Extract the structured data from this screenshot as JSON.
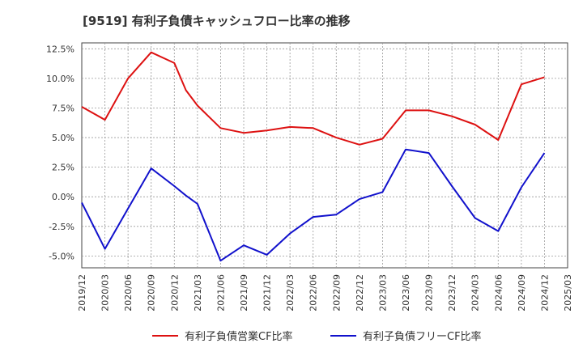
{
  "chart_data": {
    "type": "line",
    "title": "[9519]  有利子負債キャッシュフロー比率の推移",
    "xlabel": "",
    "ylabel": "",
    "ylim": [
      -6.0,
      13.0
    ],
    "yticks": [
      "12.5%",
      "10.0%",
      "7.5%",
      "5.0%",
      "2.5%",
      "0.0%",
      "-2.5%",
      "-5.0%"
    ],
    "ytick_values": [
      12.5,
      10.0,
      7.5,
      5.0,
      2.5,
      0.0,
      -2.5,
      -5.0
    ],
    "xticks": [
      "2019/12",
      "2020/03",
      "2020/06",
      "2020/09",
      "2020/12",
      "2021/03",
      "2021/06",
      "2021/09",
      "2021/12",
      "2022/03",
      "2022/06",
      "2022/09",
      "2022/12",
      "2023/03",
      "2023/06",
      "2023/09",
      "2023/12",
      "2024/03",
      "2024/06",
      "2024/09",
      "2024/12",
      "2025/03"
    ],
    "grid": true,
    "legend_position": "bottom",
    "series": [
      {
        "name": "有利子負債営業CF比率",
        "color": "#dd1111",
        "points": [
          [
            0,
            7.6
          ],
          [
            1,
            6.5
          ],
          [
            2,
            10.0
          ],
          [
            3,
            12.2
          ],
          [
            4,
            11.3
          ],
          [
            4.5,
            9.0
          ],
          [
            5,
            7.7
          ],
          [
            6,
            5.8
          ],
          [
            7,
            5.4
          ],
          [
            8,
            5.6
          ],
          [
            9,
            5.9
          ],
          [
            10,
            5.8
          ],
          [
            11,
            5.0
          ],
          [
            12,
            4.4
          ],
          [
            13,
            4.9
          ],
          [
            14,
            7.3
          ],
          [
            15,
            7.3
          ],
          [
            16,
            6.8
          ],
          [
            17,
            6.1
          ],
          [
            18,
            4.8
          ],
          [
            19,
            9.5
          ],
          [
            20,
            10.1
          ]
        ]
      },
      {
        "name": "有利子負債フリーCF比率",
        "color": "#1111cc",
        "points": [
          [
            0,
            -0.5
          ],
          [
            1,
            -4.4
          ],
          [
            2,
            -1.0
          ],
          [
            3,
            2.4
          ],
          [
            4,
            0.9
          ],
          [
            4.5,
            0.1
          ],
          [
            5,
            -0.6
          ],
          [
            6,
            -5.4
          ],
          [
            7,
            -4.1
          ],
          [
            8,
            -4.9
          ],
          [
            9,
            -3.1
          ],
          [
            10,
            -1.7
          ],
          [
            11,
            -1.5
          ],
          [
            12,
            -0.2
          ],
          [
            13,
            0.4
          ],
          [
            14,
            4.0
          ],
          [
            15,
            3.7
          ],
          [
            16,
            0.9
          ],
          [
            17,
            -1.8
          ],
          [
            18,
            -2.9
          ],
          [
            19,
            0.8
          ],
          [
            20,
            3.7
          ]
        ]
      }
    ]
  }
}
